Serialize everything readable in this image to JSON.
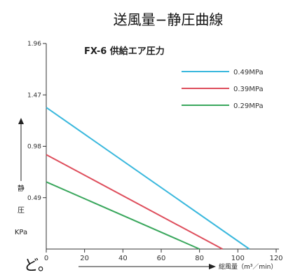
{
  "chart_data": {
    "type": "line",
    "title": "送風量−静圧曲線",
    "subtitle": "FX-6 供給エア圧力",
    "ylabel_chars": [
      "静",
      "圧"
    ],
    "yunit": "KPa",
    "xlabel": "総風量（m³／min）",
    "xlim": [
      0,
      120
    ],
    "ylim": [
      0,
      1.96
    ],
    "x_ticks": [
      0,
      20,
      40,
      60,
      80,
      100,
      120
    ],
    "y_tick_labels": [
      "1.96",
      "1.47",
      "0.98",
      "0.49"
    ],
    "y_ticks": [
      1.96,
      1.47,
      0.98,
      0.49
    ],
    "legend_position": "top-right",
    "series": [
      {
        "name": "0.49MPa",
        "color": "#3ab8dd",
        "x": [
          0,
          106
        ],
        "y": [
          1.35,
          0
        ]
      },
      {
        "name": "0.39MPa",
        "color": "#de4e5c",
        "x": [
          0,
          92
        ],
        "y": [
          0.9,
          0
        ]
      },
      {
        "name": "0.29MPa",
        "color": "#3aa75d",
        "x": [
          0,
          80
        ],
        "y": [
          0.64,
          0
        ]
      }
    ]
  },
  "corner_text": "ど。"
}
